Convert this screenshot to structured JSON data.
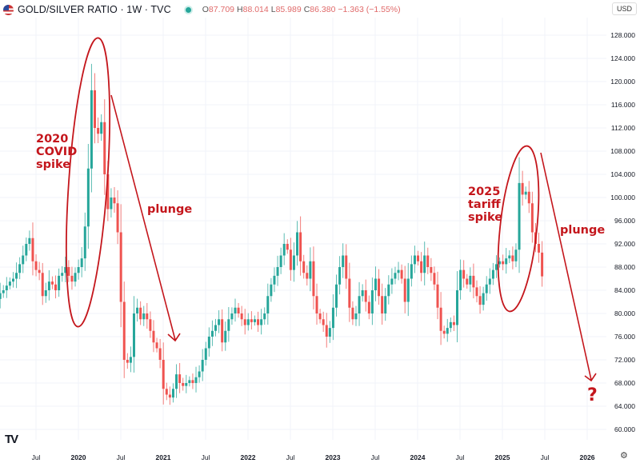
{
  "header": {
    "symbol_title": "GOLD/SILVER RATIO · 1W · TVC",
    "open_label": "O",
    "open": "87.709",
    "high_label": "H",
    "high": "88.014",
    "low_label": "L",
    "low": "85.989",
    "close_label": "C",
    "close": "86.380",
    "change": "−1.363 (−1.55%)",
    "currency": "USD",
    "flag_icon": "us-flag-icon",
    "status_icon": "market-status-dot"
  },
  "colors": {
    "up": "#26a69a",
    "down": "#ef5350",
    "annotation": "#c4161c",
    "grid": "#f0f3fa",
    "axis_text": "#131722"
  },
  "chart_data": {
    "type": "candlestick",
    "title": "GOLD/SILVER RATIO · 1W · TVC",
    "note": "approximate closes sampled every two weeks, Jan 2019 – Jul 2025",
    "x_start": 2019.0,
    "x_step_years": 0.0385,
    "closes": [
      83.0,
      82.5,
      83.5,
      84,
      84.8,
      85.5,
      86,
      87,
      88.5,
      90,
      92,
      93,
      89,
      87.5,
      87,
      83,
      84,
      85.5,
      85,
      84,
      86.5,
      87,
      88,
      86.5,
      85.5,
      87,
      88,
      89.5,
      95,
      105,
      118.5,
      112,
      111,
      113,
      104,
      98,
      100,
      99,
      94,
      82,
      72,
      71.5,
      72.5,
      80,
      81,
      79,
      80,
      79,
      77,
      75,
      74,
      72,
      67,
      66,
      65.5,
      67,
      69.5,
      68,
      67.5,
      68,
      68.5,
      68,
      69,
      70,
      72,
      74,
      76,
      77,
      78,
      79,
      75,
      77,
      79,
      80,
      81,
      80,
      79,
      78,
      79,
      78.5,
      79,
      78,
      79,
      80,
      83,
      85,
      86.5,
      88,
      90,
      92,
      91,
      87.5,
      90,
      94,
      89,
      87,
      86,
      89,
      83,
      80,
      79,
      78,
      76,
      77.5,
      81,
      85,
      88,
      90,
      86,
      81,
      79,
      80,
      83,
      84,
      82,
      80,
      84,
      86,
      83,
      80,
      83,
      85,
      86,
      87,
      87.5,
      86,
      82,
      86,
      88.5,
      90,
      89,
      87,
      90,
      88,
      87,
      85,
      81,
      77,
      76.5,
      77.5,
      78.5,
      78,
      84,
      87.5,
      86,
      85,
      86.5,
      84.5,
      83,
      81.5,
      83.5,
      85,
      86,
      87.5,
      88.5,
      89,
      88.5,
      89.5,
      90,
      89,
      91,
      102.5,
      100.5,
      101,
      99,
      94,
      92,
      90.5,
      86.4
    ],
    "first_open": 83.0,
    "ylim": [
      58,
      130
    ],
    "y_ticks": [
      "60.000",
      "64.000",
      "68.000",
      "72.000",
      "76.000",
      "80.000",
      "84.000",
      "88.000",
      "92.000",
      "96.000",
      "100.000",
      "104.000",
      "108.000",
      "112.000",
      "116.000",
      "120.000",
      "124.000",
      "128.000"
    ],
    "x_ticks": [
      {
        "label": "Jul",
        "t": 2019.5,
        "major": false
      },
      {
        "label": "2020",
        "t": 2020.0,
        "major": true
      },
      {
        "label": "Jul",
        "t": 2020.5,
        "major": false
      },
      {
        "label": "2021",
        "t": 2021.0,
        "major": true
      },
      {
        "label": "Jul",
        "t": 2021.5,
        "major": false
      },
      {
        "label": "2022",
        "t": 2022.0,
        "major": true
      },
      {
        "label": "Jul",
        "t": 2022.5,
        "major": false
      },
      {
        "label": "2023",
        "t": 2023.0,
        "major": true
      },
      {
        "label": "Jul",
        "t": 2023.5,
        "major": false
      },
      {
        "label": "2024",
        "t": 2024.0,
        "major": true
      },
      {
        "label": "Jul",
        "t": 2024.5,
        "major": false
      },
      {
        "label": "2025",
        "t": 2025.0,
        "major": true
      },
      {
        "label": "Jul",
        "t": 2025.5,
        "major": false
      },
      {
        "label": "2026",
        "t": 2026.0,
        "major": true
      }
    ],
    "annotations": {
      "covid_label": [
        "2020",
        "COVID",
        "spike"
      ],
      "covid_plunge": "plunge",
      "tariff_label": [
        "2025",
        "tariff",
        "spike"
      ],
      "tariff_plunge": "plunge",
      "question": "?"
    }
  },
  "footer": {
    "logo": "TV",
    "settings_icon": "gear-icon"
  }
}
